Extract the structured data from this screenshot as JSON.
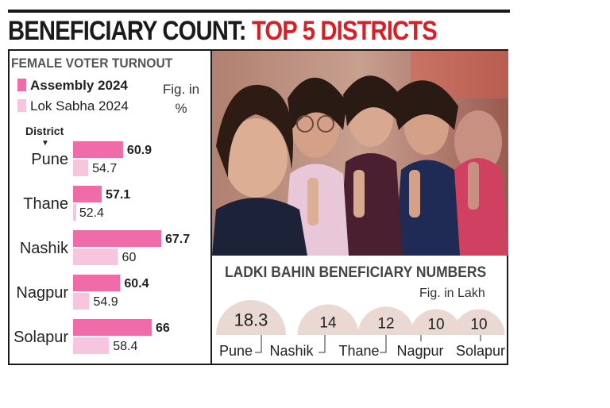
{
  "headline": {
    "part1": "BENEFICIARY COUNT:",
    "part2": "TOP 5 DISTRICTS"
  },
  "colors": {
    "assembly": "#f06ca9",
    "lok_sabha": "#f7c6de",
    "headline_red": "#d81f26",
    "bubble": "#ead9d3"
  },
  "chart_data": [
    {
      "type": "bar",
      "title": "FEMALE VOTER TURNOUT",
      "unit_note": "Fig. in %",
      "axis_label": "District",
      "orientation": "horizontal",
      "categories": [
        "Pune",
        "Thane",
        "Nashik",
        "Nagpur",
        "Solapur"
      ],
      "series": [
        {
          "name": "Assembly 2024",
          "values": [
            60.9,
            57.1,
            67.7,
            60.4,
            66
          ]
        },
        {
          "name": "Lok Sabha 2024",
          "values": [
            54.7,
            52.4,
            60,
            54.9,
            58.4
          ]
        }
      ],
      "xlim": [
        0,
        75
      ]
    },
    {
      "type": "bubble",
      "title": "LADKI BAHIN BENEFICIARY NUMBERS",
      "unit_note": "Fig. in Lakh",
      "categories": [
        "Pune",
        "Nashik",
        "Thane",
        "Nagpur",
        "Solapur"
      ],
      "values": [
        18.3,
        14,
        12,
        10,
        10
      ]
    }
  ],
  "value_labels": {
    "turnout_assembly": [
      "60.9",
      "57.1",
      "67.7",
      "60.4",
      "66"
    ],
    "turnout_lok_sabha": [
      "54.7",
      "52.4",
      "60",
      "54.9",
      "58.4"
    ],
    "beneficiaries": [
      "18.3",
      "14",
      "12",
      "10",
      "10"
    ]
  }
}
